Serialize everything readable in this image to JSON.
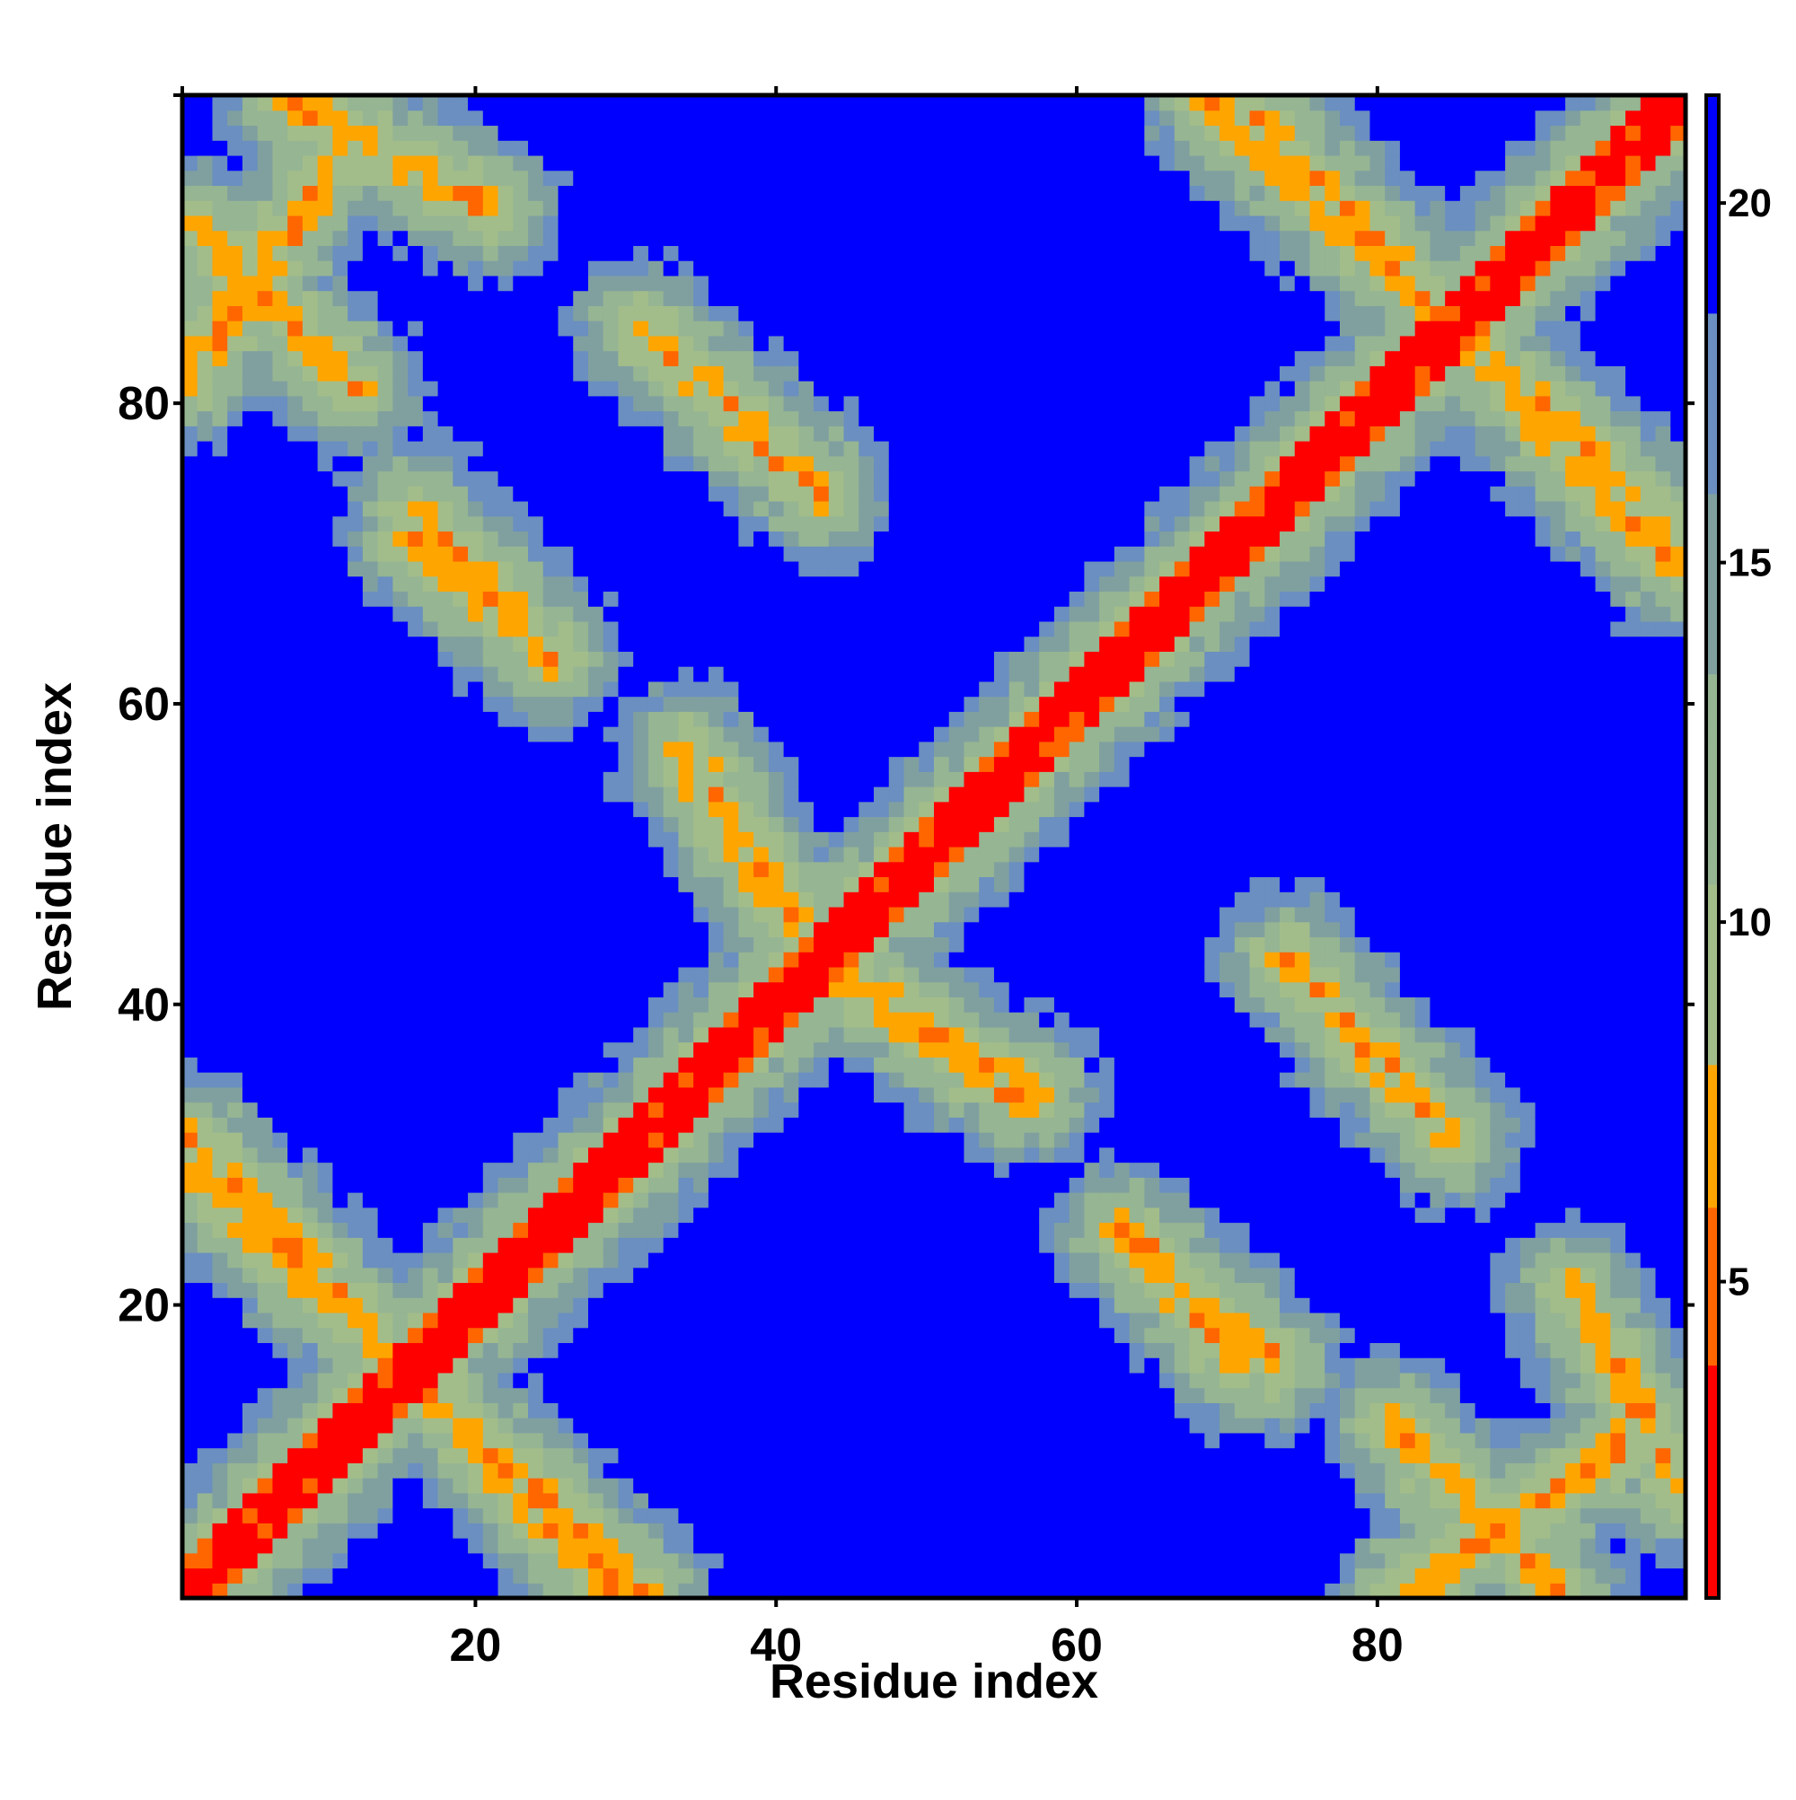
{
  "chart_data": {
    "type": "heatmap",
    "title": "",
    "xlabel": "Residue index",
    "ylabel": "Residue index",
    "x_range": [
      1,
      100
    ],
    "y_range": [
      1,
      100
    ],
    "x_ticks": [
      20,
      40,
      60,
      80
    ],
    "x_tick_labels": [
      "20",
      "40",
      "60",
      "80"
    ],
    "y_ticks": [
      20,
      40,
      60,
      80
    ],
    "y_tick_labels": [
      "20",
      "40",
      "60",
      "80"
    ],
    "grid": false,
    "n_residues": 100,
    "colorbar": {
      "range": [
        0.6,
        21.5
      ],
      "ticks": [
        5,
        10,
        15,
        20
      ],
      "tick_labels": [
        "5",
        "10",
        "15",
        "20"
      ],
      "placement": "right"
    },
    "color_scale": [
      {
        "upto": 3.8,
        "color": "#ff0000"
      },
      {
        "upto": 6.0,
        "color": "#ff6600"
      },
      {
        "upto": 8.0,
        "color": "#ffa500"
      },
      {
        "upto": 10.5,
        "color": "#a3bd8a"
      },
      {
        "upto": 13.5,
        "color": "#96b592"
      },
      {
        "upto": 16.0,
        "color": "#80a0a0"
      },
      {
        "upto": 18.5,
        "color": "#6a8fc0"
      },
      {
        "upto": 99,
        "color": "#0000ff"
      }
    ],
    "structure": {
      "description_of_data": "Symmetric residue-residue distance map with contact bands",
      "diagonal": {
        "value": 2.0,
        "width": 2
      },
      "contact_bands": [
        {
          "i": [
            1,
            14
          ],
          "j": [
            31,
            17
          ],
          "value": 6.5
        },
        {
          "i": [
            17,
            29
          ],
          "j": [
            14,
            1
          ],
          "value": 6.5
        },
        {
          "i": [
            16,
            25
          ],
          "j": [
            73,
            63
          ],
          "value": 6.5
        },
        {
          "i": [
            34,
            43
          ],
          "j": [
            57,
            43
          ],
          "value": 6.5
        },
        {
          "i": [
            44,
            56
          ],
          "j": [
            42,
            34
          ],
          "value": 6.5
        },
        {
          "i": [
            31,
            43
          ],
          "j": [
            85,
            74
          ],
          "value": 6.5
        },
        {
          "i": [
            63,
            71
          ],
          "j": [
            25,
            16
          ],
          "value": 6.5
        },
        {
          "i": [
            74,
            85
          ],
          "j": [
            43,
            31
          ],
          "value": 6.5
        },
        {
          "i": [
            1,
            12
          ],
          "j": [
            92,
            81
          ],
          "value": 6.5
        },
        {
          "i": [
            8,
            21
          ],
          "j": [
            100,
            93
          ],
          "value": 6.5
        },
        {
          "i": [
            69,
            84
          ],
          "j": [
            100,
            86
          ],
          "value": 6.5
        },
        {
          "i": [
            84,
            99
          ],
          "j": [
            86,
            72
          ],
          "value": 6.5
        },
        {
          "i": [
            82,
            98
          ],
          "j": [
            1,
            12
          ],
          "value": 6.5
        }
      ],
      "far_value": 22,
      "band_halo": 4.5
    }
  }
}
